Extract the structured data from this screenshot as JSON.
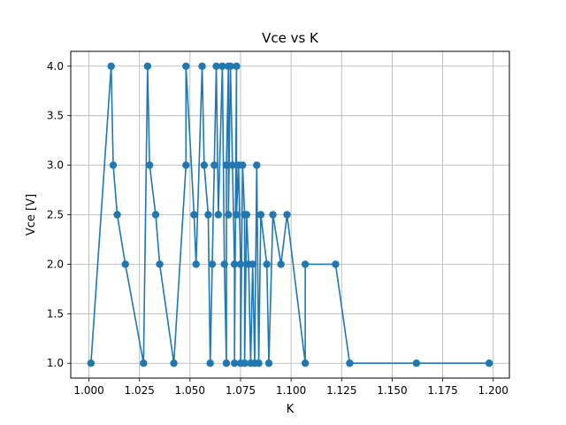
{
  "chart_data": {
    "type": "line",
    "title": "Vce vs K",
    "xlabel": "K",
    "ylabel": "Vce [V]",
    "xlim": [
      0.991,
      1.208
    ],
    "ylim": [
      0.85,
      4.15
    ],
    "grid": true,
    "marker": "circle",
    "color": "#1f77b4",
    "xticks": [
      1.0,
      1.025,
      1.05,
      1.075,
      1.1,
      1.125,
      1.15,
      1.175,
      1.2
    ],
    "xtick_labels": [
      "1.000",
      "1.025",
      "1.050",
      "1.075",
      "1.100",
      "1.125",
      "1.150",
      "1.175",
      "1.200"
    ],
    "yticks": [
      1.0,
      1.5,
      2.0,
      2.5,
      3.0,
      3.5,
      4.0
    ],
    "ytick_labels": [
      "1.0",
      "1.5",
      "2.0",
      "2.5",
      "3.0",
      "3.5",
      "4.0"
    ],
    "series": [
      {
        "x": [
          1.001,
          1.011,
          1.012,
          1.014,
          1.018,
          1.027,
          1.029,
          1.03,
          1.033,
          1.035,
          1.042,
          1.048,
          1.048,
          1.052,
          1.053,
          1.056,
          1.057,
          1.059,
          1.06,
          1.061,
          1.062,
          1.063,
          1.064,
          1.066,
          1.067,
          1.068,
          1.068,
          1.069,
          1.069,
          1.07,
          1.071,
          1.072,
          1.072,
          1.073,
          1.073,
          1.074,
          1.075,
          1.075,
          1.076,
          1.077,
          1.077,
          1.078,
          1.079,
          1.08,
          1.081,
          1.082,
          1.083,
          1.084,
          1.085,
          1.088,
          1.089,
          1.091,
          1.095,
          1.098,
          1.107,
          1.107,
          1.122,
          1.129,
          1.162,
          1.198
        ],
        "y": [
          1.0,
          4.0,
          3.0,
          2.5,
          2.0,
          1.0,
          4.0,
          3.0,
          2.5,
          2.0,
          1.0,
          3.0,
          4.0,
          2.5,
          2.0,
          4.0,
          3.0,
          2.5,
          1.0,
          2.0,
          3.0,
          4.0,
          2.5,
          4.0,
          2.0,
          1.0,
          3.0,
          4.0,
          2.5,
          4.0,
          3.0,
          2.0,
          1.0,
          4.0,
          2.5,
          3.0,
          2.0,
          1.0,
          3.0,
          2.5,
          1.0,
          2.5,
          2.0,
          1.0,
          2.0,
          1.0,
          3.0,
          1.0,
          2.5,
          2.0,
          1.0,
          2.5,
          2.0,
          2.5,
          1.0,
          2.0,
          2.0,
          1.0,
          1.0,
          1.0
        ]
      }
    ]
  }
}
